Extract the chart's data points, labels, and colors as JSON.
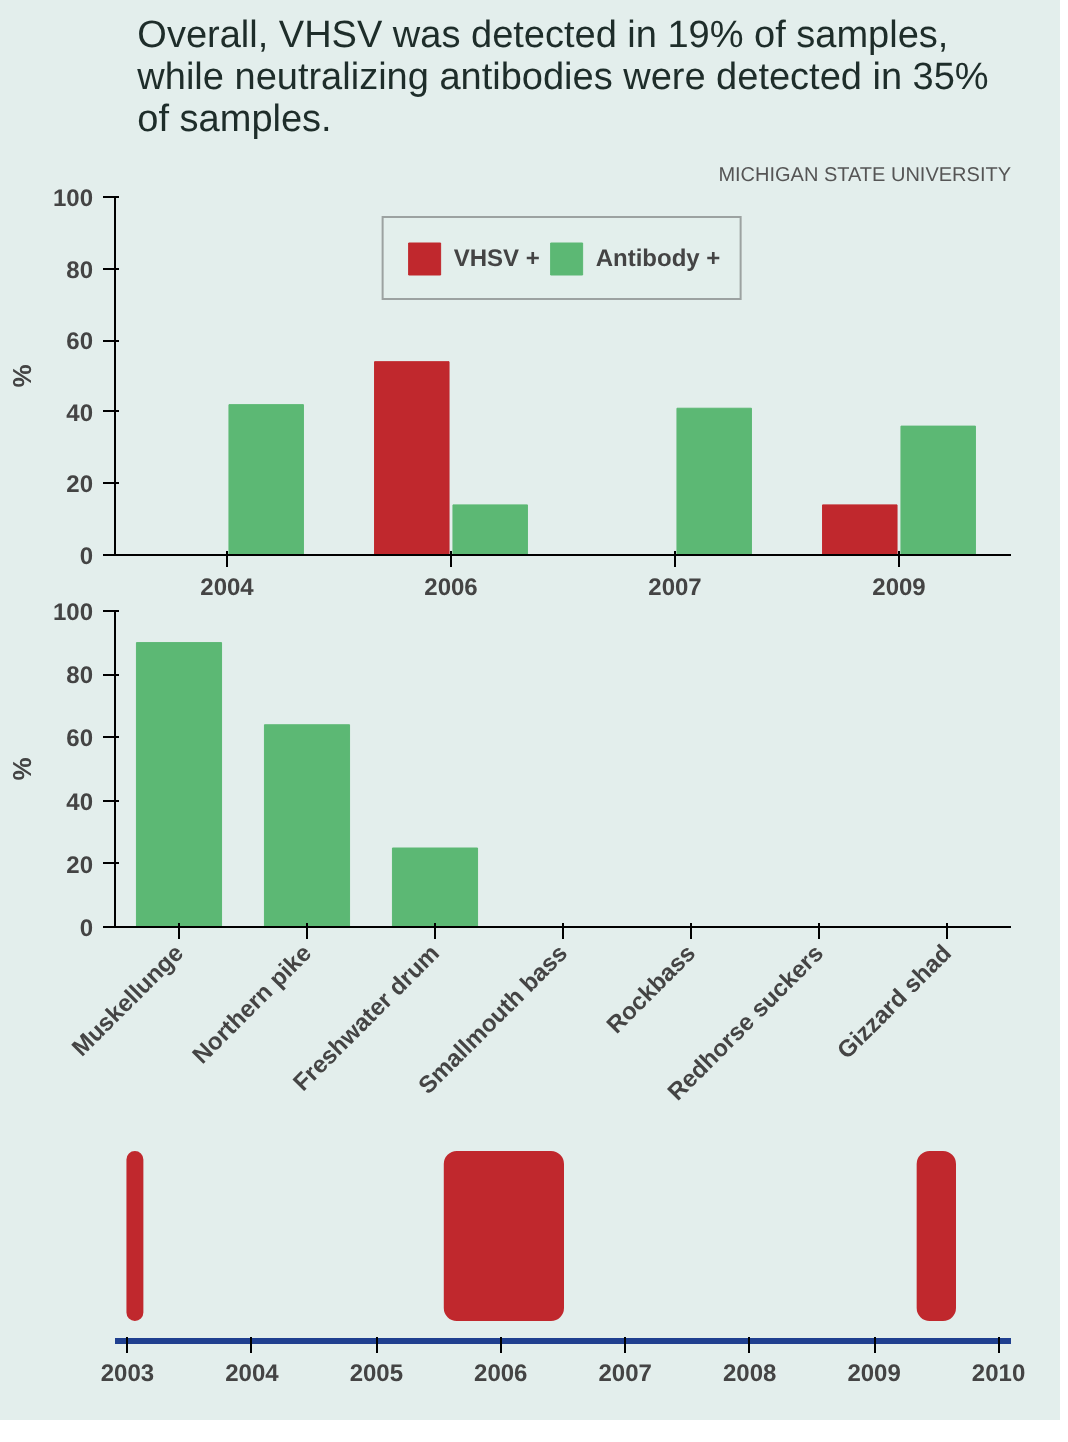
{
  "chart_data": [
    {
      "type": "bar",
      "title": "Overall, VHSV was detected in 19% of samples, while neutralizing antibodies were detected in 35% of samples.",
      "ylabel": "%",
      "categories": [
        "2004",
        "2006",
        "2007",
        "2009"
      ],
      "series": [
        {
          "name": "VHSV +",
          "color": "#c0282d",
          "values": [
            0,
            54,
            0,
            14
          ]
        },
        {
          "name": "Antibody +",
          "color": "#5cb874",
          "values": [
            42,
            14,
            41,
            36
          ]
        }
      ],
      "ylim": [
        0,
        100
      ],
      "yticks": [
        0,
        20,
        40,
        60,
        80,
        100
      ],
      "legend": "top",
      "annotations": [
        "MICHIGAN STATE UNIVERSITY"
      ]
    },
    {
      "type": "bar",
      "ylabel": "%",
      "categories": [
        "Muskellunge",
        "Northern pike",
        "Freshwater drum",
        "Smallmouth bass",
        "Rockbass",
        "Redhorse suckers",
        "Gizzard shad"
      ],
      "series": [
        {
          "color": "#5cb874",
          "values": [
            90,
            64,
            25,
            0,
            0,
            0,
            0
          ]
        }
      ],
      "ylim": [
        0,
        100
      ],
      "yticks": [
        0,
        20,
        40,
        60,
        80,
        100
      ]
    },
    {
      "type": "bar",
      "orientation": "horizontal",
      "categories": [
        null
      ],
      "series": [
        {
          "color": "#c0282d",
          "base": [
            2003
          ],
          "values": [
            0.12
          ]
        },
        {
          "color": "#c0282d",
          "base": [
            2005.55
          ],
          "values": [
            0.95
          ]
        },
        {
          "color": "#c0282d",
          "base": [
            2009.35
          ],
          "values": [
            0.3
          ]
        }
      ],
      "xlim": [
        2002.9,
        2010.1
      ],
      "xticks": [
        2003,
        2004,
        2005,
        2006,
        2007,
        2008,
        2009,
        2010
      ]
    }
  ]
}
